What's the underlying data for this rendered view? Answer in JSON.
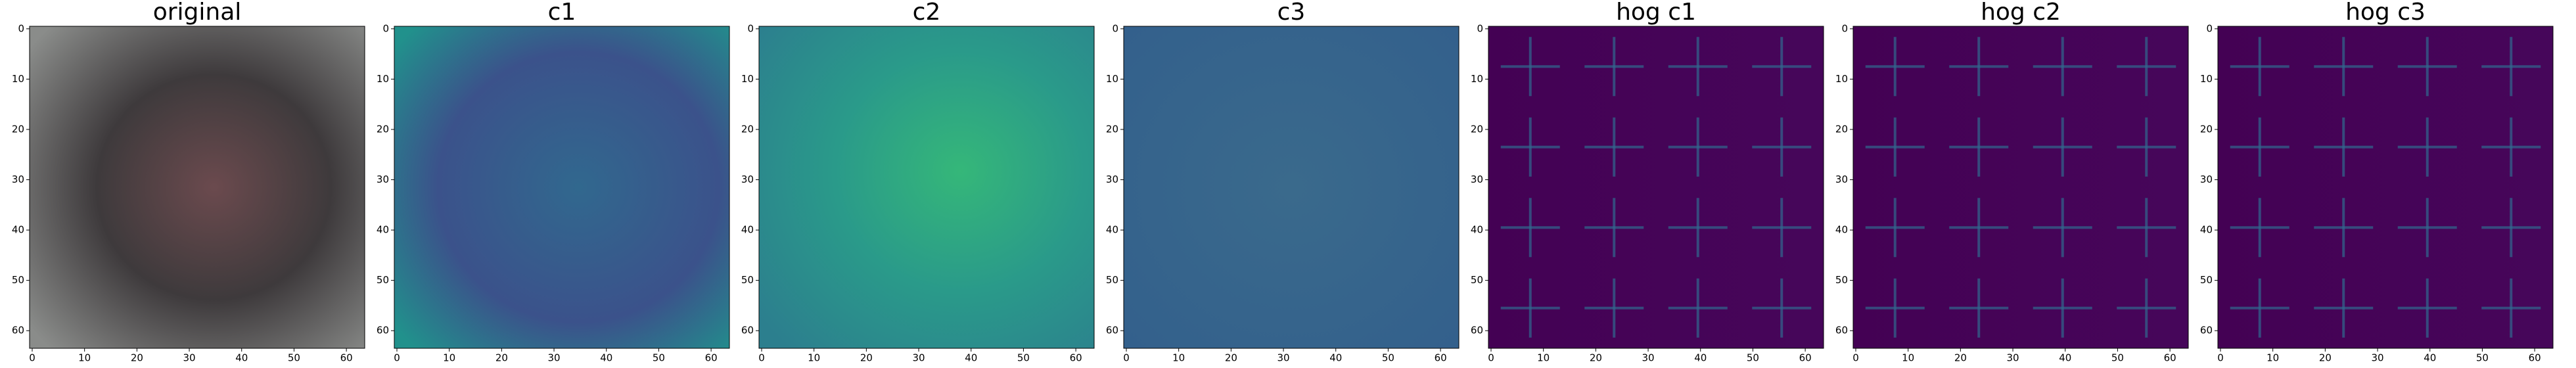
{
  "chart_data": [
    {
      "type": "image",
      "title": "original",
      "xlim": [
        -0.5,
        63.5
      ],
      "ylim": [
        63.5,
        -0.5
      ],
      "xticks": [
        0,
        10,
        20,
        30,
        40,
        50,
        60
      ],
      "yticks": [
        0,
        10,
        20,
        30,
        40,
        50,
        60
      ]
    },
    {
      "type": "image",
      "title": "c1",
      "xlim": [
        -0.5,
        63.5
      ],
      "ylim": [
        63.5,
        -0.5
      ],
      "xticks": [
        0,
        10,
        20,
        30,
        40,
        50,
        60
      ],
      "yticks": [
        0,
        10,
        20,
        30,
        40,
        50,
        60
      ]
    },
    {
      "type": "image",
      "title": "c2",
      "xlim": [
        -0.5,
        63.5
      ],
      "ylim": [
        63.5,
        -0.5
      ],
      "xticks": [
        0,
        10,
        20,
        30,
        40,
        50,
        60
      ],
      "yticks": [
        0,
        10,
        20,
        30,
        40,
        50,
        60
      ]
    },
    {
      "type": "image",
      "title": "c3",
      "xlim": [
        -0.5,
        63.5
      ],
      "ylim": [
        63.5,
        -0.5
      ],
      "xticks": [
        0,
        10,
        20,
        30,
        40,
        50,
        60
      ],
      "yticks": [
        0,
        10,
        20,
        30,
        40,
        50,
        60
      ]
    },
    {
      "type": "image",
      "title": "hog c1",
      "xlim": [
        -0.5,
        63.5
      ],
      "ylim": [
        63.5,
        -0.5
      ],
      "xticks": [
        0,
        10,
        20,
        30,
        40,
        50,
        60
      ],
      "yticks": [
        0,
        10,
        20,
        30,
        40,
        50,
        60
      ]
    },
    {
      "type": "image",
      "title": "hog c2",
      "xlim": [
        -0.5,
        63.5
      ],
      "ylim": [
        63.5,
        -0.5
      ],
      "xticks": [
        0,
        10,
        20,
        30,
        40,
        50,
        60
      ],
      "yticks": [
        0,
        10,
        20,
        30,
        40,
        50,
        60
      ]
    },
    {
      "type": "image",
      "title": "hog c3",
      "xlim": [
        -0.5,
        63.5
      ],
      "ylim": [
        63.5,
        -0.5
      ],
      "xticks": [
        0,
        10,
        20,
        30,
        40,
        50,
        60
      ],
      "yticks": [
        0,
        10,
        20,
        30,
        40,
        50,
        60
      ]
    }
  ]
}
